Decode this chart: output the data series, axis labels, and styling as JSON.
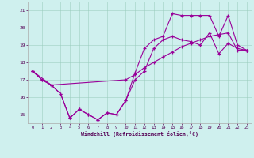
{
  "xlabel": "Windchill (Refroidissement éolien,°C)",
  "background_color": "#cff0ee",
  "line_color": "#990099",
  "xlim": [
    -0.5,
    23.5
  ],
  "ylim": [
    14.5,
    21.5
  ],
  "yticks": [
    15,
    16,
    17,
    18,
    19,
    20,
    21
  ],
  "xticks": [
    0,
    1,
    2,
    3,
    4,
    5,
    6,
    7,
    8,
    9,
    10,
    11,
    12,
    13,
    14,
    15,
    16,
    17,
    18,
    19,
    20,
    21,
    22,
    23
  ],
  "line1_x": [
    0,
    1,
    2,
    3,
    4,
    5,
    6,
    7,
    8,
    9,
    10,
    11,
    12,
    13,
    14,
    15,
    16,
    17,
    18,
    19,
    20,
    21,
    22,
    23
  ],
  "line1_y": [
    17.5,
    17.0,
    16.7,
    16.2,
    14.8,
    15.3,
    15.0,
    14.7,
    15.1,
    15.0,
    15.8,
    17.0,
    17.5,
    18.8,
    19.3,
    19.5,
    19.3,
    19.2,
    19.0,
    19.7,
    18.5,
    19.1,
    18.8,
    18.7
  ],
  "line2_x": [
    0,
    2,
    10,
    11,
    12,
    13,
    14,
    15,
    16,
    17,
    18,
    19,
    20,
    21,
    22,
    23
  ],
  "line2_y": [
    17.5,
    16.7,
    17.0,
    17.3,
    17.7,
    18.0,
    18.3,
    18.6,
    18.9,
    19.1,
    19.3,
    19.5,
    19.6,
    19.7,
    18.7,
    18.7
  ],
  "line3_x": [
    0,
    1,
    2,
    3,
    4,
    5,
    6,
    7,
    8,
    9,
    10,
    11,
    12,
    13,
    14,
    15,
    16,
    17,
    18,
    19,
    20,
    21,
    22,
    23
  ],
  "line3_y": [
    17.5,
    17.0,
    16.7,
    16.2,
    14.8,
    15.3,
    15.0,
    14.7,
    15.1,
    15.0,
    15.8,
    17.4,
    18.8,
    19.3,
    19.5,
    20.8,
    20.7,
    20.7,
    20.7,
    20.7,
    19.5,
    20.7,
    19.0,
    18.7
  ]
}
